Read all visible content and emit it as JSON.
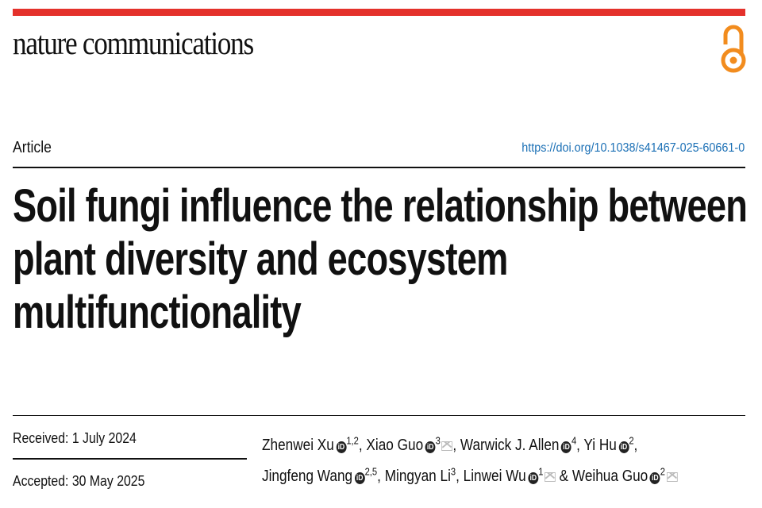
{
  "header": {
    "journal": "nature communications",
    "accent_color": "#e4312b",
    "open_access_icon": "open-access-lock-icon",
    "open_access_color": "#f28c1e"
  },
  "article": {
    "type": "Article",
    "doi": "https://doi.org/10.1038/s41467-025-60661-0",
    "title_lines": [
      "Soil fungi influence the relationship between",
      "plant diversity and ecosystem",
      "multifunctionality"
    ]
  },
  "dates": {
    "received": "Received: 1 July 2024",
    "accepted": "Accepted: 30 May 2025"
  },
  "authors": [
    {
      "name": "Zhenwei Xu",
      "orcid": true,
      "aff": "1,2",
      "sep": ", ",
      "email": false
    },
    {
      "name": "Xiao Guo",
      "orcid": true,
      "aff": "3",
      "sep": ", ",
      "email": true
    },
    {
      "name": "Warwick J. Allen",
      "orcid": true,
      "aff": "4",
      "sep": ", ",
      "email": false
    },
    {
      "name": "Yi Hu",
      "orcid": true,
      "aff": "2",
      "sep": ",",
      "email": false
    },
    {
      "name": "Jingfeng Wang",
      "orcid": true,
      "aff": "2,5",
      "sep": ", ",
      "email": false
    },
    {
      "name": "Mingyan Li",
      "orcid": false,
      "aff": "3",
      "sep": ", ",
      "email": false
    },
    {
      "name": "Linwei Wu",
      "orcid": true,
      "aff": "1",
      "sep": " & ",
      "email": true
    },
    {
      "name": "Weihua Guo",
      "orcid": true,
      "aff": "2",
      "sep": "",
      "email": true
    }
  ]
}
